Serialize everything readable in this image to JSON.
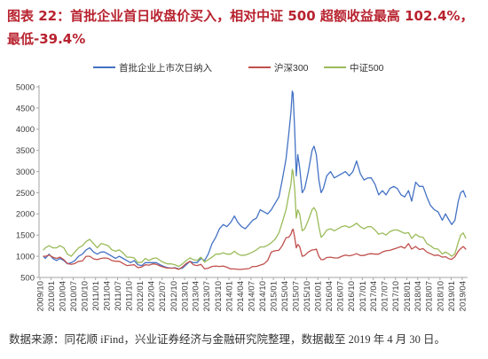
{
  "chart_data": {
    "type": "line",
    "title": "图表 22：首批企业首日收盘价买入，相对中证 500 超额收益最高 102.4%，最低-39.4%",
    "x": [
      "2009-10-30",
      "2009-11-15",
      "2009-12-15",
      "2010-01-15",
      "2010-02-15",
      "2010-03-15",
      "2010-04-15",
      "2010-05-15",
      "2010-06-15",
      "2010-07-15",
      "2010-08-15",
      "2010-09-15",
      "2010-10-15",
      "2010-11-15",
      "2010-12-15",
      "2011-01-15",
      "2011-02-15",
      "2011-03-15",
      "2011-04-15",
      "2011-05-15",
      "2011-06-15",
      "2011-07-15",
      "2011-08-15",
      "2011-09-15",
      "2011-10-15",
      "2011-11-15",
      "2011-12-15",
      "2012-01-15",
      "2012-02-15",
      "2012-03-15",
      "2012-04-15",
      "2012-05-15",
      "2012-06-15",
      "2012-07-15",
      "2012-08-15",
      "2012-09-15",
      "2012-10-15",
      "2012-11-15",
      "2012-12-15",
      "2013-01-15",
      "2013-02-15",
      "2013-03-15",
      "2013-04-15",
      "2013-05-15",
      "2013-06-15",
      "2013-07-15",
      "2013-08-15",
      "2013-09-15",
      "2013-10-15",
      "2013-11-15",
      "2013-12-15",
      "2014-01-15",
      "2014-02-15",
      "2014-03-15",
      "2014-04-15",
      "2014-05-15",
      "2014-06-15",
      "2014-07-15",
      "2014-08-15",
      "2014-09-15",
      "2014-10-15",
      "2014-11-15",
      "2014-12-15",
      "2015-01-15",
      "2015-02-15",
      "2015-03-15",
      "2015-04-15",
      "2015-05-08",
      "2015-05-25",
      "2015-06-05",
      "2015-06-12",
      "2015-06-25",
      "2015-07-08",
      "2015-07-20",
      "2015-08-05",
      "2015-08-26",
      "2015-09-15",
      "2015-10-15",
      "2015-11-15",
      "2015-12-01",
      "2015-12-20",
      "2016-01-10",
      "2016-01-28",
      "2016-02-15",
      "2016-03-15",
      "2016-04-15",
      "2016-05-15",
      "2016-06-15",
      "2016-07-15",
      "2016-08-15",
      "2016-09-15",
      "2016-10-15",
      "2016-11-15",
      "2016-12-15",
      "2017-01-15",
      "2017-02-15",
      "2017-03-15",
      "2017-04-15",
      "2017-05-15",
      "2017-06-15",
      "2017-07-15",
      "2017-08-15",
      "2017-09-15",
      "2017-10-15",
      "2017-11-15",
      "2017-12-15",
      "2018-01-15",
      "2018-02-10",
      "2018-03-15",
      "2018-04-15",
      "2018-05-15",
      "2018-06-15",
      "2018-07-15",
      "2018-08-15",
      "2018-09-15",
      "2018-10-20",
      "2018-11-15",
      "2018-12-15",
      "2019-01-05",
      "2019-01-31",
      "2019-02-28",
      "2019-03-20",
      "2019-04-10",
      "2019-04-30"
    ],
    "series": [
      {
        "name": "首批企业上市次日纳入",
        "color": "#4472C4",
        "values": [
          1000,
          950,
          1050,
          950,
          900,
          950,
          900,
          820,
          850,
          900,
          1000,
          1050,
          1150,
          1200,
          1100,
          1050,
          1100,
          1100,
          1050,
          1000,
          950,
          1000,
          950,
          900,
          850,
          900,
          800,
          780,
          850,
          850,
          850,
          850,
          800,
          760,
          730,
          720,
          730,
          700,
          720,
          800,
          880,
          850,
          850,
          950,
          900,
          1050,
          1300,
          1450,
          1650,
          1750,
          1700,
          1800,
          1950,
          1800,
          1700,
          1650,
          1750,
          1850,
          1900,
          2100,
          2050,
          2000,
          2100,
          2250,
          2400,
          2800,
          3300,
          3900,
          4400,
          4900,
          4850,
          4000,
          2900,
          3400,
          3100,
          2500,
          2600,
          3000,
          3500,
          3600,
          3400,
          2800,
          2500,
          2600,
          2900,
          3000,
          2850,
          2900,
          2950,
          3000,
          2900,
          3000,
          3250,
          2950,
          2800,
          2850,
          2850,
          2700,
          2450,
          2550,
          2450,
          2600,
          2650,
          2600,
          2450,
          2400,
          2550,
          2300,
          2750,
          2650,
          2650,
          2400,
          2200,
          2100,
          2050,
          1850,
          2000,
          1850,
          1750,
          1850,
          2300,
          2500,
          2550,
          2400
        ]
      },
      {
        "name": "沪深300",
        "color": "#C0504D",
        "values": [
          1000,
          1000,
          1030,
          980,
          950,
          980,
          920,
          830,
          810,
          830,
          880,
          890,
          1000,
          1000,
          940,
          920,
          950,
          960,
          950,
          900,
          880,
          880,
          830,
          780,
          790,
          800,
          730,
          750,
          800,
          790,
          820,
          810,
          770,
          740,
          720,
          720,
          720,
          690,
          750,
          830,
          880,
          800,
          780,
          810,
          700,
          720,
          760,
          770,
          760,
          770,
          740,
          700,
          700,
          690,
          690,
          700,
          710,
          760,
          760,
          790,
          820,
          900,
          1100,
          1130,
          1140,
          1250,
          1440,
          1450,
          1520,
          1620,
          1640,
          1450,
          1200,
          1280,
          1230,
          1000,
          1020,
          1100,
          1150,
          1150,
          1170,
          1000,
          920,
          920,
          970,
          980,
          960,
          960,
          1000,
          1030,
          1010,
          1030,
          1060,
          1020,
          1020,
          1050,
          1060,
          1050,
          1050,
          1100,
          1130,
          1140,
          1170,
          1200,
          1230,
          1190,
          1300,
          1170,
          1230,
          1160,
          1180,
          1100,
          1060,
          1020,
          1030,
          980,
          990,
          940,
          930,
          990,
          1120,
          1180,
          1230,
          1170
        ]
      },
      {
        "name": "中证500",
        "color": "#9BBB59",
        "values": [
          1150,
          1200,
          1250,
          1200,
          1200,
          1250,
          1200,
          1050,
          1000,
          1100,
          1200,
          1250,
          1350,
          1400,
          1300,
          1200,
          1300,
          1280,
          1250,
          1150,
          1120,
          1150,
          1080,
          980,
          980,
          960,
          850,
          860,
          950,
          900,
          950,
          960,
          900,
          850,
          820,
          820,
          800,
          760,
          820,
          900,
          960,
          920,
          900,
          980,
          860,
          920,
          980,
          1050,
          1050,
          1080,
          1050,
          1050,
          1120,
          1050,
          1020,
          1030,
          1060,
          1100,
          1150,
          1220,
          1220,
          1260,
          1320,
          1400,
          1550,
          1800,
          2100,
          2450,
          2700,
          3050,
          3000,
          2600,
          1900,
          2100,
          2000,
          1600,
          1650,
          1850,
          2100,
          2150,
          2050,
          1700,
          1450,
          1500,
          1620,
          1650,
          1600,
          1650,
          1700,
          1720,
          1680,
          1720,
          1780,
          1700,
          1650,
          1700,
          1700,
          1620,
          1520,
          1550,
          1500,
          1580,
          1620,
          1620,
          1580,
          1540,
          1560,
          1420,
          1520,
          1460,
          1450,
          1300,
          1250,
          1180,
          1170,
          1050,
          1100,
          1050,
          1000,
          1060,
          1330,
          1500,
          1550,
          1430
        ]
      }
    ],
    "xticks": [
      "2009/10",
      "2010/01",
      "2010/04",
      "2010/07",
      "2010/10",
      "2011/01",
      "2011/04",
      "2011/07",
      "2011/10",
      "2012/01",
      "2012/04",
      "2012/07",
      "2012/10",
      "2013/01",
      "2013/04",
      "2013/07",
      "2013/10",
      "2014/01",
      "2014/04",
      "2014/07",
      "2014/10",
      "2015/01",
      "2015/04",
      "2015/07",
      "2015/10",
      "2016/01",
      "2016/04",
      "2016/07",
      "2016/10",
      "2017/01",
      "2017/04",
      "2017/07",
      "2017/10",
      "2018/01",
      "2018/04",
      "2018/07",
      "2018/10",
      "2019/01",
      "2019/04"
    ],
    "ylim": [
      500,
      5000
    ],
    "yticks": [
      500,
      1000,
      1500,
      2000,
      2500,
      3000,
      3500,
      4000,
      4500,
      5000
    ],
    "grid": false,
    "legend": "top"
  },
  "source": "数据来源：同花顺 iFind，兴业证券经济与金融研究院整理，数据截至 2019 年 4 月 30 日。",
  "colors": {
    "title": "#B8232F",
    "axis": "#A6A6A6"
  }
}
